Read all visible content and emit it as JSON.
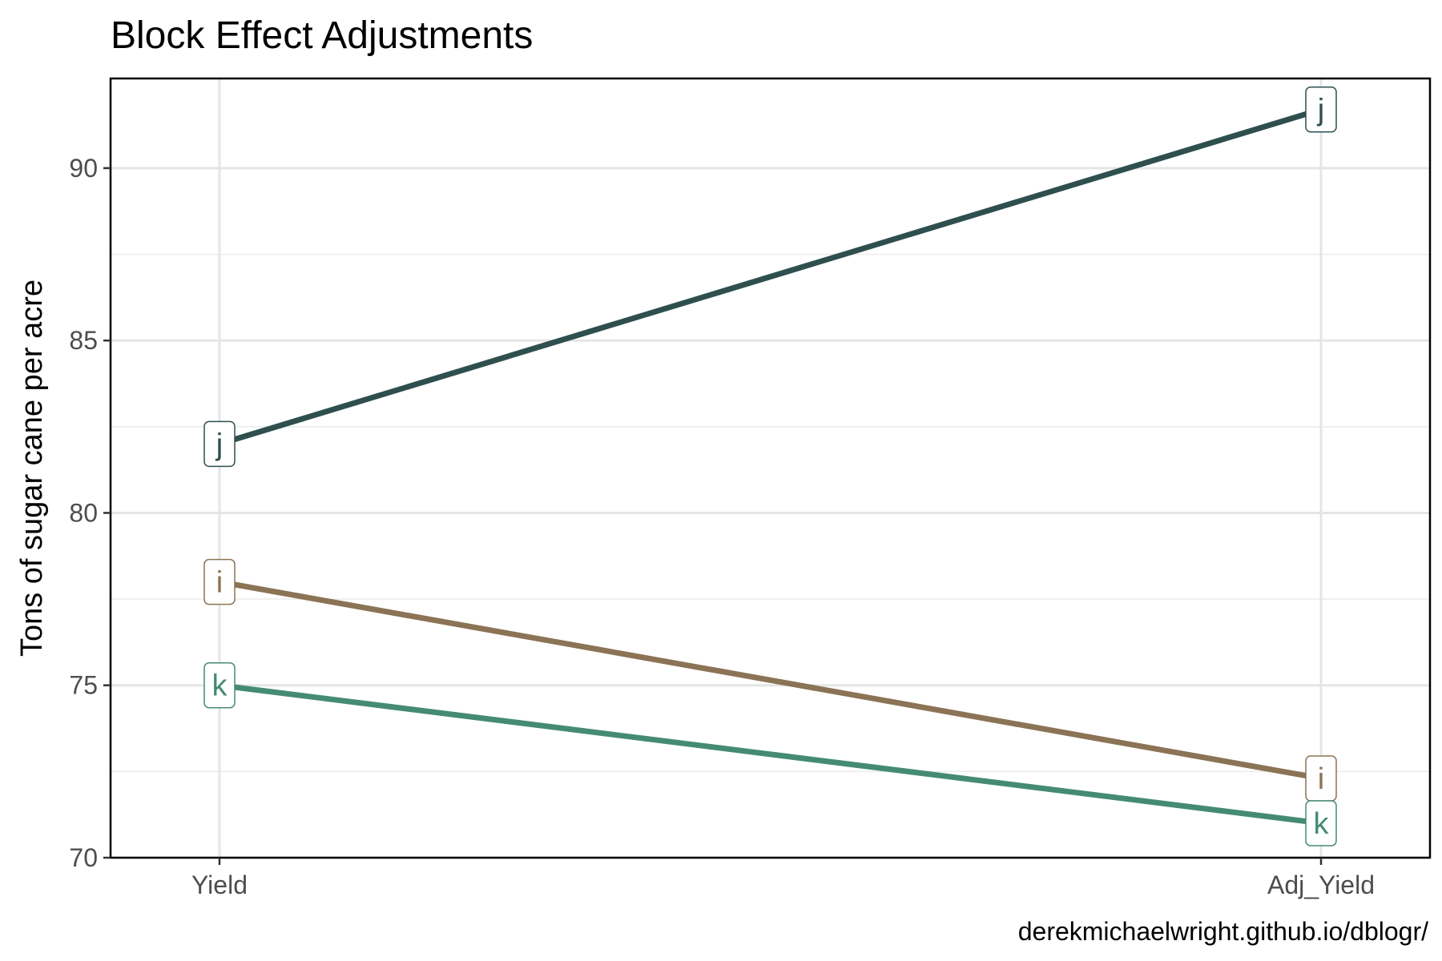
{
  "chart_data": {
    "type": "line",
    "title": "Block Effect Adjustments",
    "xlabel": "",
    "ylabel": "Tons of sugar cane per acre",
    "caption": "derekmichaelwright.github.io/dblogr/",
    "categories": [
      "Yield",
      "Adj_Yield"
    ],
    "ylim": [
      70,
      92.6
    ],
    "yticks": [
      70,
      75,
      80,
      85,
      90
    ],
    "grid": true,
    "legend": "none",
    "series": [
      {
        "name": "j",
        "values": [
          82.0,
          91.7
        ],
        "color": "#2f4f4f"
      },
      {
        "name": "i",
        "values": [
          78.0,
          72.3
        ],
        "color": "#8b7355"
      },
      {
        "name": "k",
        "values": [
          75.0,
          71.0
        ],
        "color": "#458b74"
      }
    ]
  }
}
